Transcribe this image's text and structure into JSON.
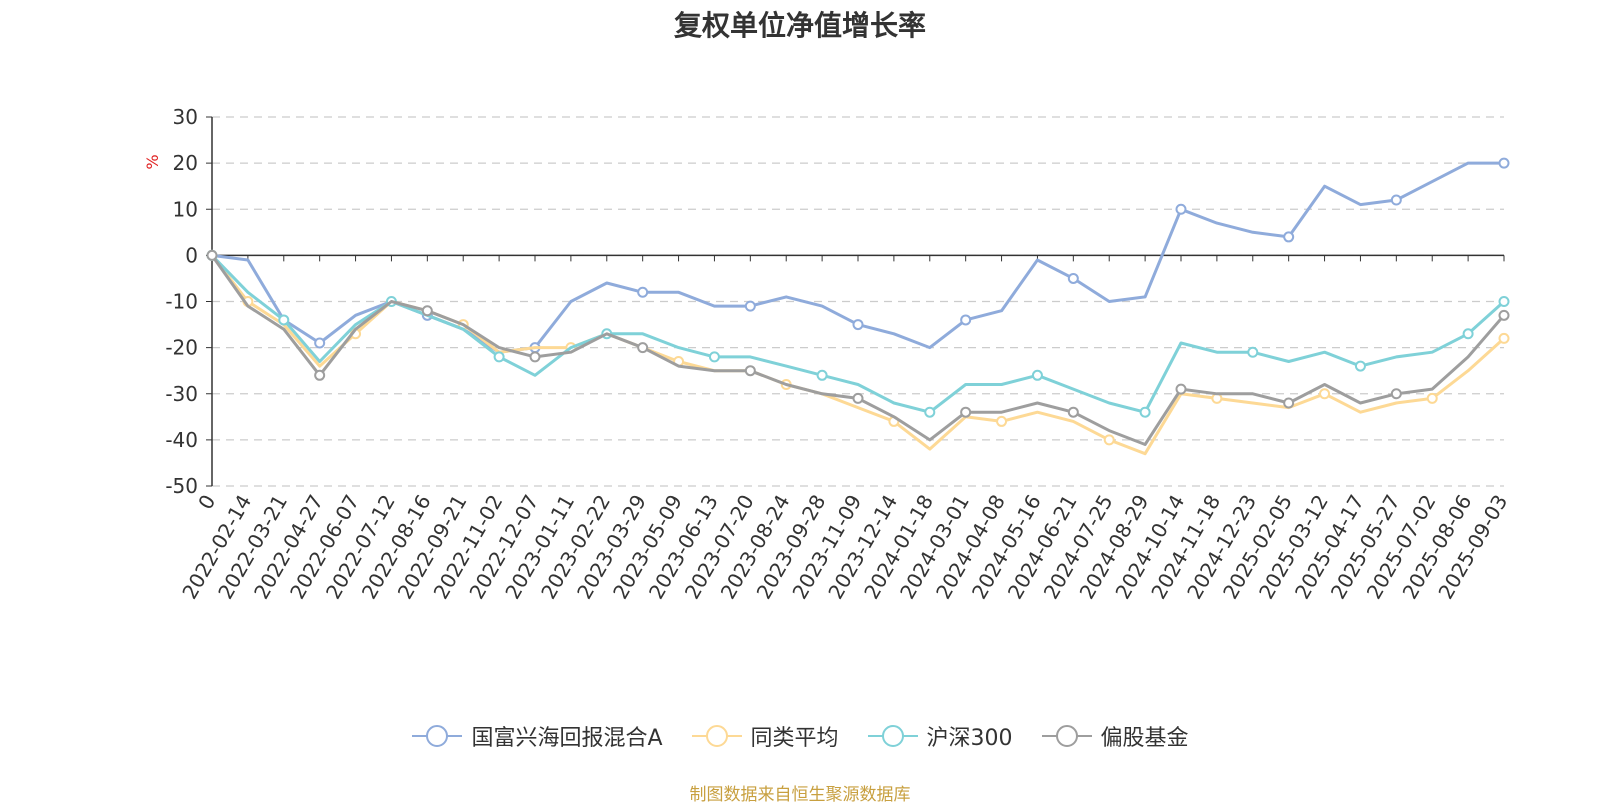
{
  "chart_data": {
    "type": "line",
    "title": "复权单位净值增长率",
    "ylabel": "%",
    "ylim": [
      -50,
      30
    ],
    "yticks": [
      30,
      20,
      10,
      0,
      -10,
      -20,
      -30,
      -40,
      -50
    ],
    "grid": true,
    "legend_position": "bottom",
    "source_note": "制图数据来自恒生聚源数据库",
    "x_tick_labels": [
      "0",
      "2022-02-14",
      "2022-03-21",
      "2022-04-27",
      "2022-06-07",
      "2022-07-12",
      "2022-08-16",
      "2022-09-21",
      "2022-11-02",
      "2022-12-07",
      "2023-01-11",
      "2023-02-22",
      "2023-03-29",
      "2023-05-09",
      "2023-06-13",
      "2023-07-20",
      "2023-08-24",
      "2023-09-28",
      "2023-11-09",
      "2023-12-14",
      "2024-01-18",
      "2024-03-01",
      "2024-04-08",
      "2024-05-16",
      "2024-06-21",
      "2024-07-25",
      "2024-08-29",
      "2024-10-14",
      "2024-11-18",
      "2024-12-23",
      "2025-02-05",
      "2025-03-12",
      "2025-04-17",
      "2025-05-27",
      "2025-07-02",
      "2025-08-06",
      "2025-09-03"
    ],
    "series": [
      {
        "name": "国富兴海回报混合A",
        "color": "#8fabdb",
        "values": [
          0,
          -1,
          -14,
          -19,
          -13,
          -10,
          -13,
          -16,
          -21,
          -20,
          -10,
          -6,
          -8,
          -8,
          -11,
          -11,
          -9,
          -11,
          -15,
          -17,
          -20,
          -14,
          -12,
          -1,
          -5,
          -10,
          -9,
          10,
          7,
          5,
          4,
          15,
          11,
          12,
          16,
          20,
          20
        ]
      },
      {
        "name": "同类平均",
        "color": "#fdd995",
        "values": [
          0,
          -10,
          -15,
          -24,
          -17,
          -10,
          -12,
          -15,
          -21,
          -20,
          -20,
          -17,
          -20,
          -23,
          -25,
          -25,
          -28,
          -30,
          -33,
          -36,
          -42,
          -35,
          -36,
          -34,
          -36,
          -40,
          -43,
          -30,
          -31,
          -32,
          -33,
          -30,
          -34,
          -32,
          -31,
          -25,
          -18
        ]
      },
      {
        "name": "沪深300",
        "color": "#7fd1d8",
        "values": [
          0,
          -8,
          -14,
          -23,
          -15,
          -10,
          -13,
          -16,
          -22,
          -26,
          -20,
          -17,
          -17,
          -20,
          -22,
          -22,
          -24,
          -26,
          -28,
          -32,
          -34,
          -28,
          -28,
          -26,
          -29,
          -32,
          -34,
          -19,
          -21,
          -21,
          -23,
          -21,
          -24,
          -22,
          -21,
          -17,
          -10
        ]
      },
      {
        "name": "偏股基金",
        "color": "#9e9e9e",
        "values": [
          0,
          -11,
          -16,
          -26,
          -16,
          -10,
          -12,
          -15,
          -20,
          -22,
          -21,
          -17,
          -20,
          -24,
          -25,
          -25,
          -28,
          -30,
          -31,
          -35,
          -40,
          -34,
          -34,
          -32,
          -34,
          -38,
          -41,
          -29,
          -30,
          -30,
          -32,
          -28,
          -32,
          -30,
          -29,
          -22,
          -13
        ]
      }
    ]
  }
}
